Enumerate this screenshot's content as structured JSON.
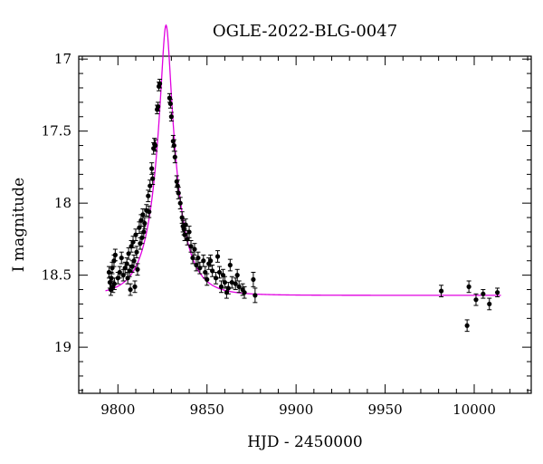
{
  "chart_data": {
    "type": "scatter",
    "title": "OGLE-2022-BLG-0047",
    "xlabel": "HJD - 2450000",
    "ylabel": "I magnitude",
    "xlim": [
      9778,
      10032
    ],
    "ylim": [
      19.32,
      16.98
    ],
    "y_inverted": true,
    "x_ticks": [
      9800,
      9850,
      9900,
      9950,
      10000
    ],
    "x_tick_labels": [
      "9800",
      "9850",
      "9900",
      "9950",
      "10000"
    ],
    "y_ticks": [
      17,
      17.5,
      18,
      18.5,
      19
    ],
    "y_tick_labels": [
      "17",
      "17.5",
      "18",
      "18.5",
      "19"
    ],
    "grid": false,
    "marker_color": "#000000",
    "model_color": "#e000e0",
    "model": {
      "name": "",
      "t0": 9827,
      "u0": 0.18,
      "tE": 13.5,
      "baseline": 18.64,
      "x_range": [
        9793,
        10015
      ]
    },
    "series": [
      {
        "name": "",
        "points": [
          [
            9795.0,
            18.48,
            0.04
          ],
          [
            9795.5,
            18.55,
            0.04
          ],
          [
            9796.0,
            18.6,
            0.04
          ],
          [
            9796.3,
            18.52,
            0.04
          ],
          [
            9796.8,
            18.45,
            0.04
          ],
          [
            9797.2,
            18.58,
            0.04
          ],
          [
            9797.8,
            18.4,
            0.04
          ],
          [
            9798.0,
            18.56,
            0.04
          ],
          [
            9798.5,
            18.36,
            0.04
          ],
          [
            9800.0,
            18.52,
            0.04
          ],
          [
            9801.0,
            18.48,
            0.04
          ],
          [
            9802.0,
            18.38,
            0.04
          ],
          [
            9803.0,
            18.5,
            0.04
          ],
          [
            9804.0,
            18.45,
            0.04
          ],
          [
            9805.0,
            18.42,
            0.04
          ],
          [
            9805.5,
            18.52,
            0.04
          ],
          [
            9806.0,
            18.35,
            0.04
          ],
          [
            9806.5,
            18.47,
            0.04
          ],
          [
            9807.0,
            18.6,
            0.04
          ],
          [
            9807.5,
            18.3,
            0.04
          ],
          [
            9808.0,
            18.44,
            0.04
          ],
          [
            9808.5,
            18.27,
            0.04
          ],
          [
            9809.0,
            18.4,
            0.04
          ],
          [
            9809.5,
            18.58,
            0.04
          ],
          [
            9810.0,
            18.22,
            0.04
          ],
          [
            9810.5,
            18.34,
            0.04
          ],
          [
            9811.0,
            18.46,
            0.04
          ],
          [
            9812.0,
            18.17,
            0.04
          ],
          [
            9812.5,
            18.28,
            0.04
          ],
          [
            9813.0,
            18.12,
            0.04
          ],
          [
            9813.5,
            18.24,
            0.04
          ],
          [
            9814.0,
            18.08,
            0.04
          ],
          [
            9814.5,
            18.2,
            0.04
          ],
          [
            9815.0,
            18.14,
            0.04
          ],
          [
            9816.0,
            18.05,
            0.04
          ],
          [
            9817.0,
            17.95,
            0.04
          ],
          [
            9817.5,
            18.06,
            0.04
          ],
          [
            9818.0,
            17.88,
            0.04
          ],
          [
            9819.0,
            17.76,
            0.04
          ],
          [
            9819.5,
            17.83,
            0.04
          ],
          [
            9820.0,
            17.62,
            0.04
          ],
          [
            9820.5,
            17.59,
            0.04
          ],
          [
            9821.0,
            17.6,
            0.04
          ],
          [
            9822.0,
            17.35,
            0.03
          ],
          [
            9822.5,
            17.33,
            0.03
          ],
          [
            9823.0,
            17.19,
            0.03
          ],
          [
            9823.5,
            17.17,
            0.03
          ],
          [
            9829.0,
            17.27,
            0.03
          ],
          [
            9829.5,
            17.31,
            0.03
          ],
          [
            9830.0,
            17.4,
            0.03
          ],
          [
            9831.0,
            17.57,
            0.04
          ],
          [
            9831.5,
            17.6,
            0.04
          ],
          [
            9832.0,
            17.68,
            0.04
          ],
          [
            9833.0,
            17.85,
            0.04
          ],
          [
            9833.5,
            17.88,
            0.04
          ],
          [
            9834.0,
            17.93,
            0.04
          ],
          [
            9835.0,
            18.0,
            0.04
          ],
          [
            9836.0,
            18.1,
            0.04
          ],
          [
            9836.5,
            18.16,
            0.04
          ],
          [
            9837.0,
            18.18,
            0.04
          ],
          [
            9837.5,
            18.22,
            0.04
          ],
          [
            9838.0,
            18.15,
            0.04
          ],
          [
            9839.0,
            18.25,
            0.04
          ],
          [
            9840.0,
            18.2,
            0.04
          ],
          [
            9841.0,
            18.3,
            0.04
          ],
          [
            9842.0,
            18.38,
            0.04
          ],
          [
            9843.0,
            18.32,
            0.04
          ],
          [
            9844.0,
            18.43,
            0.04
          ],
          [
            9845.0,
            18.38,
            0.04
          ],
          [
            9846.0,
            18.45,
            0.04
          ],
          [
            9848.0,
            18.4,
            0.04
          ],
          [
            9849.0,
            18.48,
            0.04
          ],
          [
            9850.0,
            18.53,
            0.04
          ],
          [
            9851.0,
            18.42,
            0.04
          ],
          [
            9852.0,
            18.4,
            0.04
          ],
          [
            9853.0,
            18.47,
            0.04
          ],
          [
            9855.0,
            18.52,
            0.04
          ],
          [
            9856.0,
            18.37,
            0.04
          ],
          [
            9857.0,
            18.48,
            0.04
          ],
          [
            9858.0,
            18.58,
            0.04
          ],
          [
            9859.0,
            18.5,
            0.04
          ],
          [
            9860.0,
            18.55,
            0.04
          ],
          [
            9861.0,
            18.62,
            0.04
          ],
          [
            9862.0,
            18.59,
            0.04
          ],
          [
            9863.0,
            18.43,
            0.04
          ],
          [
            9864.0,
            18.55,
            0.04
          ],
          [
            9866.0,
            18.56,
            0.04
          ],
          [
            9867.0,
            18.5,
            0.04
          ],
          [
            9868.0,
            18.58,
            0.04
          ],
          [
            9870.0,
            18.6,
            0.04
          ],
          [
            9871.0,
            18.62,
            0.04
          ],
          [
            9876.0,
            18.53,
            0.05
          ],
          [
            9877.0,
            18.64,
            0.05
          ],
          [
            9981.5,
            18.61,
            0.04
          ],
          [
            9996.0,
            18.85,
            0.04
          ],
          [
            9997.0,
            18.58,
            0.04
          ],
          [
            10001.0,
            18.67,
            0.04
          ],
          [
            10005.0,
            18.63,
            0.03
          ],
          [
            10008.5,
            18.7,
            0.04
          ],
          [
            10013.0,
            18.62,
            0.03
          ]
        ]
      }
    ]
  }
}
